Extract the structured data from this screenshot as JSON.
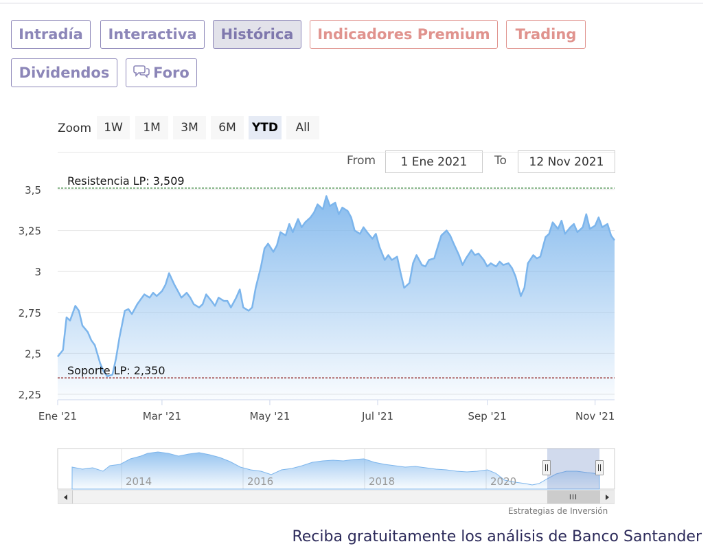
{
  "tabs": [
    {
      "label": "Intradía"
    },
    {
      "label": "Interactiva"
    },
    {
      "label": "Histórica"
    },
    {
      "label": "Indicadores Premium"
    },
    {
      "label": "Trading"
    },
    {
      "label": "Dividendos"
    },
    {
      "label": "Foro",
      "icon": "chat-bubbles-icon"
    }
  ],
  "zoom": {
    "label": "Zoom",
    "buttons": [
      "1W",
      "1M",
      "3M",
      "6M",
      "YTD",
      "All"
    ],
    "selected": "YTD"
  },
  "range": {
    "from_label": "From",
    "from_value": "1 Ene 2021",
    "to_label": "To",
    "to_value": "12 Nov 2021"
  },
  "colors": {
    "series": "#7cb5ec",
    "resistance": "#2e7d32",
    "support": "#8b1a1a"
  },
  "chart_data": {
    "type": "area",
    "x_tick_labels": [
      "Ene '21",
      "Mar '21",
      "May '21",
      "Jul '21",
      "Sep '21",
      "Nov '21"
    ],
    "y_tick_labels": [
      "2,25",
      "2,5",
      "2,75",
      "3",
      "3,25",
      "3,5"
    ],
    "ylim": [
      2.25,
      3.5
    ],
    "xlim": [
      "2021-01-01",
      "2021-11-12"
    ],
    "grid": true,
    "series": [
      {
        "points": [
          [
            "2021-01-01",
            2.48
          ],
          [
            "2021-01-04",
            2.52
          ],
          [
            "2021-01-06",
            2.72
          ],
          [
            "2021-01-08",
            2.7
          ],
          [
            "2021-01-11",
            2.79
          ],
          [
            "2021-01-13",
            2.76
          ],
          [
            "2021-01-15",
            2.67
          ],
          [
            "2021-01-18",
            2.63
          ],
          [
            "2021-01-20",
            2.58
          ],
          [
            "2021-01-22",
            2.55
          ],
          [
            "2021-01-25",
            2.44
          ],
          [
            "2021-01-27",
            2.39
          ],
          [
            "2021-01-29",
            2.36
          ],
          [
            "2021-02-01",
            2.37
          ],
          [
            "2021-02-03",
            2.47
          ],
          [
            "2021-02-05",
            2.6
          ],
          [
            "2021-02-08",
            2.76
          ],
          [
            "2021-02-10",
            2.77
          ],
          [
            "2021-02-12",
            2.74
          ],
          [
            "2021-02-15",
            2.8
          ],
          [
            "2021-02-17",
            2.83
          ],
          [
            "2021-02-19",
            2.86
          ],
          [
            "2021-02-22",
            2.84
          ],
          [
            "2021-02-24",
            2.87
          ],
          [
            "2021-02-26",
            2.85
          ],
          [
            "2021-03-01",
            2.88
          ],
          [
            "2021-03-03",
            2.92
          ],
          [
            "2021-03-05",
            2.99
          ],
          [
            "2021-03-08",
            2.92
          ],
          [
            "2021-03-10",
            2.88
          ],
          [
            "2021-03-12",
            2.84
          ],
          [
            "2021-03-15",
            2.87
          ],
          [
            "2021-03-17",
            2.84
          ],
          [
            "2021-03-19",
            2.8
          ],
          [
            "2021-03-22",
            2.78
          ],
          [
            "2021-03-24",
            2.8
          ],
          [
            "2021-03-26",
            2.86
          ],
          [
            "2021-03-29",
            2.82
          ],
          [
            "2021-03-31",
            2.79
          ],
          [
            "2021-04-02",
            2.84
          ],
          [
            "2021-04-05",
            2.82
          ],
          [
            "2021-04-07",
            2.82
          ],
          [
            "2021-04-09",
            2.78
          ],
          [
            "2021-04-12",
            2.84
          ],
          [
            "2021-04-14",
            2.89
          ],
          [
            "2021-04-16",
            2.78
          ],
          [
            "2021-04-19",
            2.76
          ],
          [
            "2021-04-21",
            2.78
          ],
          [
            "2021-04-23",
            2.9
          ],
          [
            "2021-04-26",
            3.03
          ],
          [
            "2021-04-28",
            3.14
          ],
          [
            "2021-04-30",
            3.17
          ],
          [
            "2021-05-03",
            3.12
          ],
          [
            "2021-05-05",
            3.16
          ],
          [
            "2021-05-07",
            3.24
          ],
          [
            "2021-05-10",
            3.22
          ],
          [
            "2021-05-12",
            3.29
          ],
          [
            "2021-05-14",
            3.24
          ],
          [
            "2021-05-17",
            3.32
          ],
          [
            "2021-05-19",
            3.27
          ],
          [
            "2021-05-21",
            3.3
          ],
          [
            "2021-05-24",
            3.33
          ],
          [
            "2021-05-26",
            3.36
          ],
          [
            "2021-05-28",
            3.41
          ],
          [
            "2021-05-31",
            3.38
          ],
          [
            "2021-06-02",
            3.46
          ],
          [
            "2021-06-04",
            3.4
          ],
          [
            "2021-06-07",
            3.42
          ],
          [
            "2021-06-09",
            3.35
          ],
          [
            "2021-06-11",
            3.39
          ],
          [
            "2021-06-14",
            3.37
          ],
          [
            "2021-06-16",
            3.33
          ],
          [
            "2021-06-18",
            3.25
          ],
          [
            "2021-06-21",
            3.23
          ],
          [
            "2021-06-23",
            3.27
          ],
          [
            "2021-06-25",
            3.24
          ],
          [
            "2021-06-28",
            3.2
          ],
          [
            "2021-06-30",
            3.23
          ],
          [
            "2021-07-02",
            3.15
          ],
          [
            "2021-07-05",
            3.07
          ],
          [
            "2021-07-07",
            3.1
          ],
          [
            "2021-07-09",
            3.07
          ],
          [
            "2021-07-12",
            3.09
          ],
          [
            "2021-07-14",
            2.99
          ],
          [
            "2021-07-16",
            2.9
          ],
          [
            "2021-07-19",
            2.93
          ],
          [
            "2021-07-21",
            3.05
          ],
          [
            "2021-07-23",
            3.1
          ],
          [
            "2021-07-26",
            3.04
          ],
          [
            "2021-07-28",
            3.03
          ],
          [
            "2021-07-30",
            3.07
          ],
          [
            "2021-08-02",
            3.08
          ],
          [
            "2021-08-04",
            3.15
          ],
          [
            "2021-08-06",
            3.22
          ],
          [
            "2021-08-09",
            3.25
          ],
          [
            "2021-08-11",
            3.22
          ],
          [
            "2021-08-13",
            3.17
          ],
          [
            "2021-08-16",
            3.1
          ],
          [
            "2021-08-18",
            3.04
          ],
          [
            "2021-08-20",
            3.08
          ],
          [
            "2021-08-23",
            3.13
          ],
          [
            "2021-08-25",
            3.1
          ],
          [
            "2021-08-27",
            3.11
          ],
          [
            "2021-08-30",
            3.07
          ],
          [
            "2021-09-01",
            3.03
          ],
          [
            "2021-09-03",
            3.05
          ],
          [
            "2021-09-06",
            3.03
          ],
          [
            "2021-09-08",
            3.06
          ],
          [
            "2021-09-10",
            3.04
          ],
          [
            "2021-09-13",
            3.05
          ],
          [
            "2021-09-15",
            3.02
          ],
          [
            "2021-09-17",
            2.97
          ],
          [
            "2021-09-20",
            2.85
          ],
          [
            "2021-09-22",
            2.9
          ],
          [
            "2021-09-24",
            3.05
          ],
          [
            "2021-09-27",
            3.1
          ],
          [
            "2021-09-29",
            3.08
          ],
          [
            "2021-10-01",
            3.09
          ],
          [
            "2021-10-04",
            3.21
          ],
          [
            "2021-10-06",
            3.23
          ],
          [
            "2021-10-08",
            3.3
          ],
          [
            "2021-10-11",
            3.26
          ],
          [
            "2021-10-13",
            3.31
          ],
          [
            "2021-10-15",
            3.23
          ],
          [
            "2021-10-18",
            3.27
          ],
          [
            "2021-10-20",
            3.29
          ],
          [
            "2021-10-22",
            3.24
          ],
          [
            "2021-10-25",
            3.27
          ],
          [
            "2021-10-27",
            3.35
          ],
          [
            "2021-10-29",
            3.26
          ],
          [
            "2021-11-01",
            3.28
          ],
          [
            "2021-11-03",
            3.33
          ],
          [
            "2021-11-05",
            3.27
          ],
          [
            "2021-11-08",
            3.29
          ],
          [
            "2021-11-10",
            3.22
          ],
          [
            "2021-11-12",
            3.19
          ]
        ]
      }
    ],
    "plot_lines": [
      {
        "label": "Resistencia LP: 3,509",
        "value": 3.509,
        "color": "#2e7d32",
        "style": "dashed"
      },
      {
        "label": "Soporte LP: 2,350",
        "value": 2.35,
        "color": "#8b1a1a",
        "style": "dashed"
      }
    ],
    "navigator": {
      "x_tick_labels": [
        "2014",
        "2016",
        "2018",
        "2020"
      ],
      "selected_range": [
        "2021-01-01",
        "2021-11-12"
      ]
    }
  },
  "credit": "Estrategias de Inversión",
  "footer": "Reciba gratuitamente los análisis de Banco Santander"
}
